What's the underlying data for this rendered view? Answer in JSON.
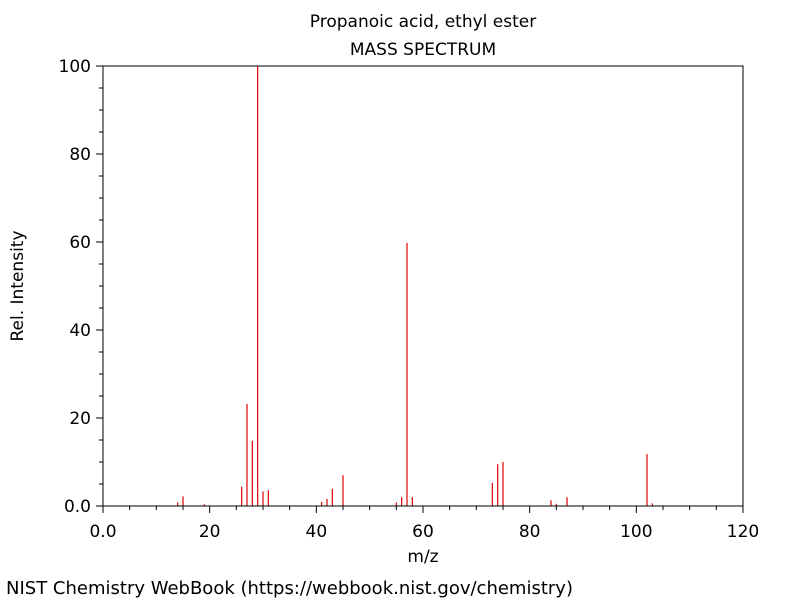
{
  "chart_data": {
    "type": "bar",
    "title": "Propanoic acid, ethyl ester",
    "subtitle": "MASS SPECTRUM",
    "xlabel": "m/z",
    "ylabel": "Rel. Intensity",
    "xlim": [
      0,
      120
    ],
    "ylim": [
      0,
      100
    ],
    "x_ticks": [
      "0.0",
      "20",
      "40",
      "60",
      "80",
      "100",
      "120"
    ],
    "y_ticks": [
      "0.0",
      "20",
      "40",
      "60",
      "80",
      "100"
    ],
    "grid": false,
    "bar_color": "#e00000",
    "peaks": [
      {
        "mz": 14,
        "intensity": 0.8
      },
      {
        "mz": 15,
        "intensity": 2.2
      },
      {
        "mz": 19,
        "intensity": 0.4
      },
      {
        "mz": 26,
        "intensity": 4.4
      },
      {
        "mz": 27,
        "intensity": 23.2
      },
      {
        "mz": 28,
        "intensity": 14.8
      },
      {
        "mz": 29,
        "intensity": 100.0
      },
      {
        "mz": 30,
        "intensity": 3.3
      },
      {
        "mz": 31,
        "intensity": 3.6
      },
      {
        "mz": 41,
        "intensity": 0.9
      },
      {
        "mz": 42,
        "intensity": 1.6
      },
      {
        "mz": 43,
        "intensity": 3.9
      },
      {
        "mz": 45,
        "intensity": 7.0
      },
      {
        "mz": 55,
        "intensity": 0.8
      },
      {
        "mz": 56,
        "intensity": 2.0
      },
      {
        "mz": 57,
        "intensity": 59.8
      },
      {
        "mz": 58,
        "intensity": 2.0
      },
      {
        "mz": 73,
        "intensity": 5.3
      },
      {
        "mz": 74,
        "intensity": 9.5
      },
      {
        "mz": 75,
        "intensity": 10.0
      },
      {
        "mz": 84,
        "intensity": 1.3
      },
      {
        "mz": 85,
        "intensity": 0.5
      },
      {
        "mz": 87,
        "intensity": 2.0
      },
      {
        "mz": 102,
        "intensity": 11.8
      },
      {
        "mz": 103,
        "intensity": 0.6
      }
    ]
  },
  "footer": {
    "text": "NIST Chemistry WebBook (https://webbook.nist.gov/chemistry)"
  }
}
